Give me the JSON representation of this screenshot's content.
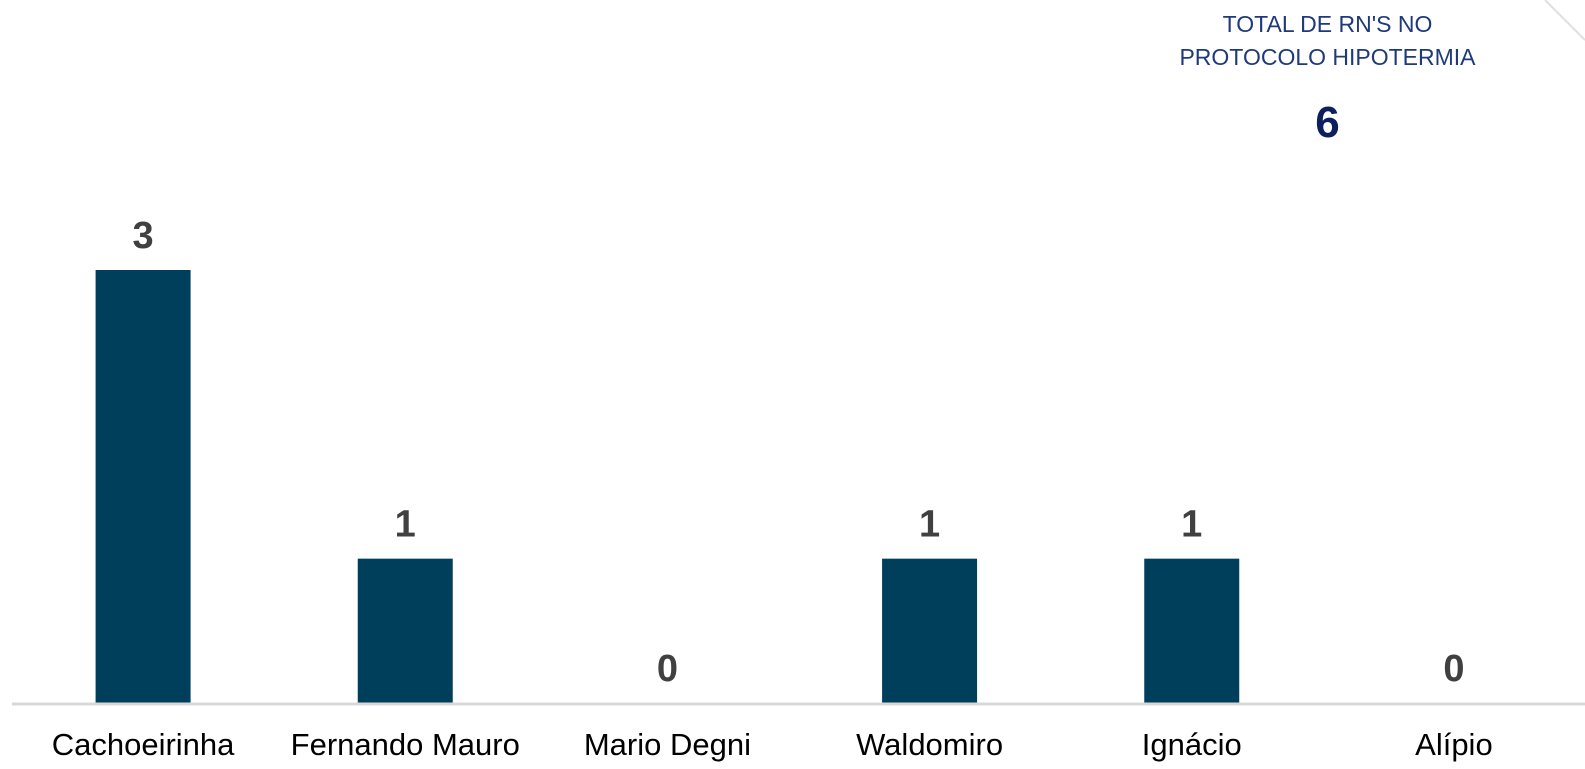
{
  "total_card": {
    "label_line1": "TOTAL DE  RN'S NO",
    "label_line2": "PROTOCOLO HIPOTERMIA",
    "value": "6"
  },
  "colors": {
    "bar": "#003f5c",
    "value_label": "#404040",
    "category_label": "#000000",
    "axis": "#d9d9d9"
  },
  "chart_data": {
    "type": "bar",
    "categories": [
      "Cachoeirinha",
      "Fernando Mauro",
      "Mario Degni",
      "Waldomiro",
      "Ignácio",
      "Alípio"
    ],
    "values": [
      3,
      1,
      0,
      1,
      1,
      0
    ],
    "title": "",
    "xlabel": "",
    "ylabel": "",
    "ylim": [
      0,
      3
    ],
    "grid": false,
    "data_labels": true
  }
}
